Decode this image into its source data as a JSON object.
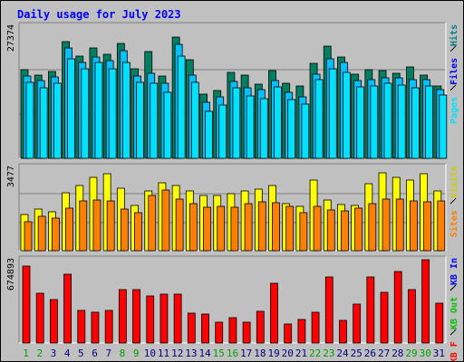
{
  "chart_data": {
    "type": "bar",
    "title": "Daily usage for July 2023",
    "categories": [
      "1",
      "2",
      "3",
      "4",
      "5",
      "6",
      "7",
      "8",
      "9",
      "10",
      "11",
      "12",
      "13",
      "14",
      "15",
      "16",
      "17",
      "18",
      "19",
      "20",
      "21",
      "22",
      "23",
      "24",
      "25",
      "26",
      "27",
      "28",
      "29",
      "30",
      "31"
    ],
    "weekend_days": [
      "1",
      "2",
      "8",
      "9",
      "15",
      "16",
      "22",
      "23",
      "29",
      "30"
    ],
    "panels": [
      {
        "name": "top",
        "max_label": "27374",
        "ylim": [
          0,
          27374
        ],
        "side_labels": [
          {
            "text": "Hits",
            "color": "#008080"
          },
          {
            "text": "Files",
            "color": "#0000ff"
          },
          {
            "text": "Pages",
            "color": "#00e0ff"
          }
        ],
        "series": [
          {
            "name": "Hits",
            "color": "#008060",
            "values": [
              18400,
              17200,
              18000,
              24100,
              21200,
              22800,
              21600,
              23800,
              18500,
              22200,
              17000,
              25200,
              20400,
              13400,
              14000,
              17800,
              17300,
              15400,
              18200,
              15600,
              15000,
              19600,
              23200,
              21000,
              17400,
              18300,
              18100,
              17700,
              19000,
              17300,
              15000
            ]
          },
          {
            "name": "Files",
            "color": "#00c0ff",
            "values": [
              17000,
              16100,
              16900,
              22900,
              19900,
              21000,
              20300,
              22300,
              17000,
              17600,
              15500,
              23600,
              17300,
              11600,
              12700,
              16000,
              14700,
              14200,
              16200,
              13600,
              12700,
              17400,
              20700,
              19900,
              16200,
              16400,
              16700,
              16600,
              16400,
              16400,
              14200
            ]
          },
          {
            "name": "Pages",
            "color": "#00e0ff",
            "values": [
              15700,
              14600,
              15500,
              20600,
              18500,
              19800,
              18600,
              19900,
              15700,
              15600,
              13700,
              21200,
              15700,
              9800,
              11000,
              14700,
              12900,
              12400,
              14800,
              12200,
              11300,
              16400,
              18500,
              17800,
              14900,
              15000,
              15600,
              15100,
              14700,
              15000,
              13100
            ]
          }
        ]
      },
      {
        "name": "middle",
        "max_label": "3477",
        "ylim": [
          0,
          3477
        ],
        "side_labels": [
          {
            "text": "Visits",
            "color": "#cccc00"
          },
          {
            "text": "Sites",
            "color": "#ff8000"
          }
        ],
        "series": [
          {
            "name": "Visits",
            "color": "#ffff00",
            "values": [
              1500,
              1750,
              1640,
              2400,
              2720,
              3070,
              3220,
              2620,
              1900,
              2480,
              2850,
              2720,
              2500,
              2300,
              2290,
              2380,
              2500,
              2560,
              2740,
              1980,
              1870,
              2930,
              2120,
              1930,
              1900,
              2800,
              3250,
              3060,
              2950,
              3230,
              2490
            ]
          },
          {
            "name": "Sites",
            "color": "#ff8000",
            "values": [
              1220,
              1420,
              1370,
              1770,
              2070,
              2130,
              2090,
              1730,
              1570,
              2290,
              2540,
              2140,
              1950,
              1830,
              1840,
              1830,
              1970,
              2040,
              2000,
              1850,
              1580,
              1860,
              1700,
              1660,
              1760,
              1960,
              2170,
              2140,
              2070,
              2050,
              2070
            ]
          }
        ]
      },
      {
        "name": "bottom",
        "max_label": "674893",
        "ylim": [
          0,
          674893
        ],
        "side_labels": [
          {
            "text": "KB In",
            "color": "#0000ff"
          },
          {
            "text": "KB Out",
            "color": "#00c000"
          },
          {
            "text": "KB F",
            "color": "#ff0000"
          }
        ],
        "series": [
          {
            "name": "KB F",
            "color": "#ff0000",
            "values": [
              626000,
              400000,
              351000,
              560000,
              267000,
              246000,
              264000,
              431000,
              433000,
              385000,
              399000,
              396000,
              243000,
              238000,
              171000,
              206000,
              171000,
              258000,
              487000,
              154000,
              194000,
              251000,
              539000,
              187000,
              316000,
              539000,
              414000,
              579000,
              433000,
              674893,
              320000
            ]
          }
        ]
      }
    ],
    "xlabel": "",
    "ylabel": "",
    "grid": true,
    "colors": {
      "background": "#c0c0c0",
      "plot": "#c0c0c0",
      "title": "#0000ff",
      "weekday_label": "#000080",
      "weekend_label": "#00a000",
      "gridline": "#808080",
      "plot_border_dark": "#808080",
      "plot_border_light": "#ffffff"
    }
  }
}
